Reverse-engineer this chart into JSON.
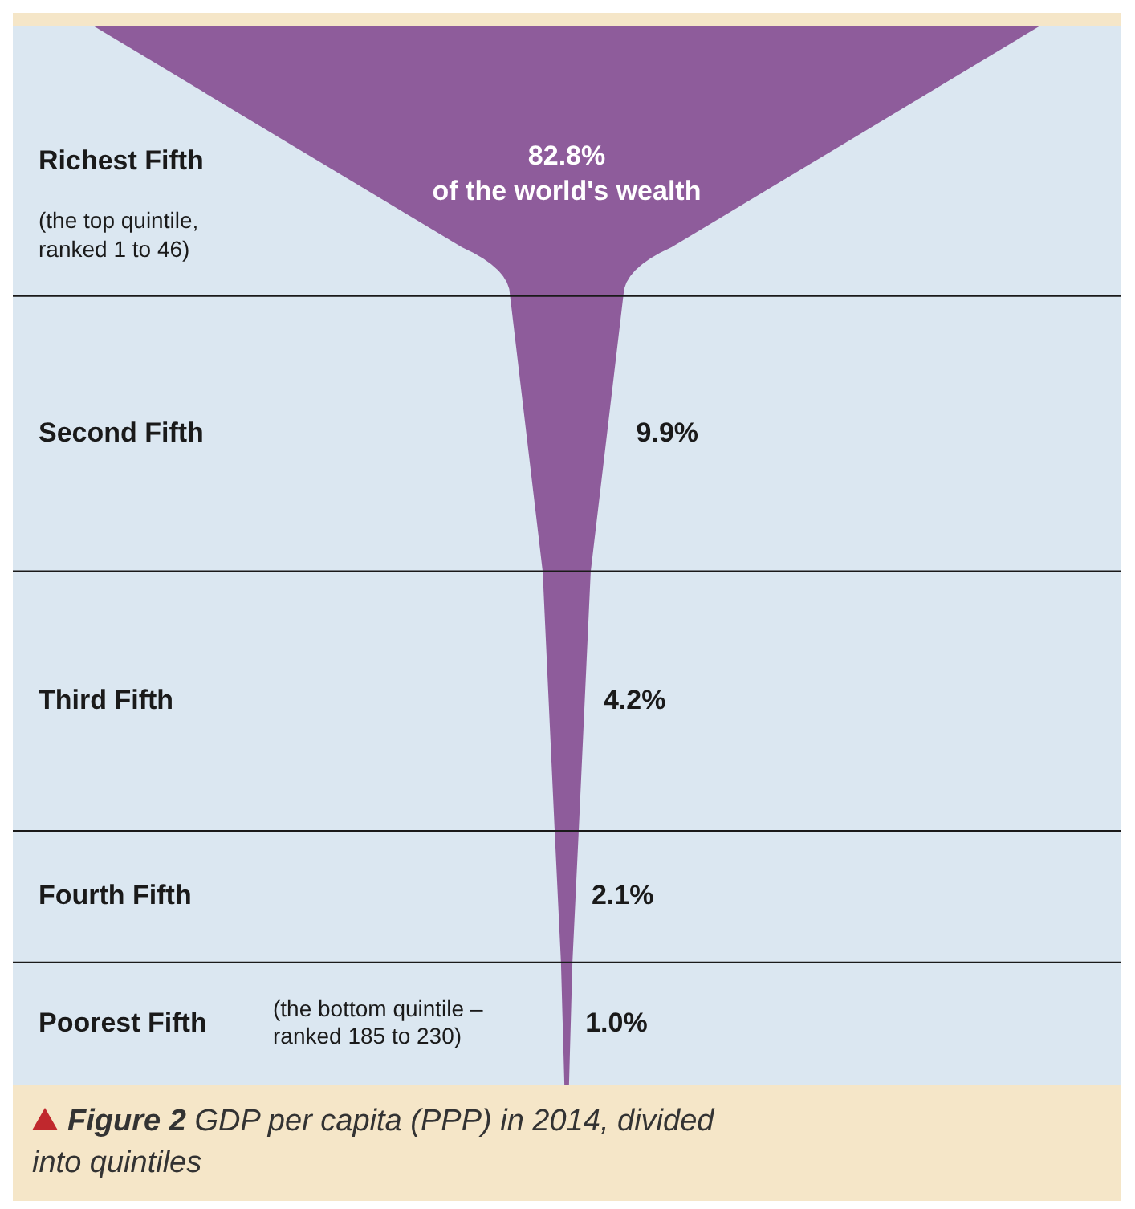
{
  "chart_data": {
    "type": "other",
    "title": "Figure 2",
    "subtitle": "GDP per capita (PPP) in 2014, divided into quintiles",
    "categories": [
      "Richest Fifth",
      "Second Fifth",
      "Third Fifth",
      "Fourth Fifth",
      "Poorest Fifth"
    ],
    "values": [
      82.8,
      9.9,
      4.2,
      2.1,
      1.0
    ],
    "value_labels": [
      "82.8%",
      "9.9%",
      "4.2%",
      "2.1%",
      "1.0%"
    ],
    "color": "#8e5c9b",
    "annotations": [
      "of the world's wealth",
      "(the top quintile, ranked 1 to 46)",
      "(the bottom quintile – ranked 185 to 230)"
    ]
  }
}
